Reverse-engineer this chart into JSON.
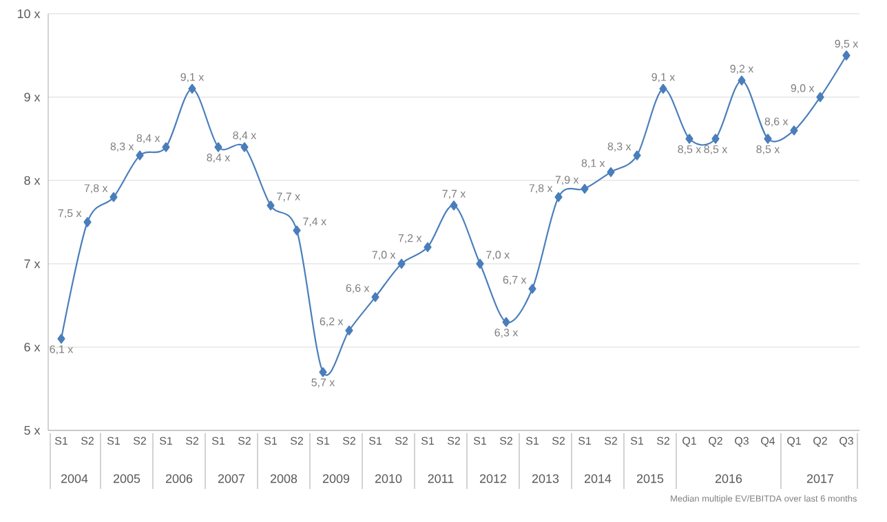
{
  "chart_data": {
    "type": "line",
    "categories": [
      "S1",
      "S2",
      "S1",
      "S2",
      "S1",
      "S2",
      "S1",
      "S2",
      "S1",
      "S2",
      "S1",
      "S2",
      "S1",
      "S2",
      "S1",
      "S2",
      "S1",
      "S2",
      "S1",
      "S2",
      "S1",
      "S2",
      "S1",
      "S2",
      "Q1",
      "Q2",
      "Q3",
      "Q4",
      "Q1",
      "Q2",
      "Q3"
    ],
    "series": [
      {
        "color": "#4a7ebb",
        "values": [
          6.1,
          7.5,
          7.8,
          8.3,
          8.4,
          9.1,
          8.4,
          8.4,
          7.7,
          7.4,
          5.7,
          6.2,
          6.6,
          7.0,
          7.2,
          7.7,
          7.0,
          6.3,
          6.7,
          7.8,
          7.9,
          8.1,
          8.3,
          9.1,
          8.5,
          8.5,
          9.2,
          8.5,
          8.6,
          9.0,
          9.5
        ],
        "value_labels": [
          "6,1 x",
          "7,5 x",
          "7,8 x",
          "8,3 x",
          "8,4 x",
          "9,1 x",
          "8,4 x",
          "8,4 x",
          "7,7 x",
          "7,4 x",
          "5,7 x",
          "6,2 x",
          "6,6 x",
          "7,0 x",
          "7,2 x",
          "7,7 x",
          "7,0 x",
          "6,3 x",
          "6,7 x",
          "7,8 x",
          "7,9 x",
          "8,1 x",
          "8,3 x",
          "9,1 x",
          "8,5 x",
          "8,5 x",
          "9,2 x",
          "8,5 x",
          "8,6 x",
          "9,0 x",
          "9,5 x"
        ]
      }
    ],
    "ylim": [
      5,
      10
    ],
    "yticks": [
      {
        "value": 5,
        "label": "5 x"
      },
      {
        "value": 6,
        "label": "6 x"
      },
      {
        "value": 7,
        "label": "7 x"
      },
      {
        "value": 8,
        "label": "8 x"
      },
      {
        "value": 9,
        "label": "9 x"
      },
      {
        "value": 10,
        "label": "10 x"
      }
    ],
    "grid": "y",
    "marker": "diamond",
    "line_style": "solid",
    "annotations": [
      "2004",
      "2005",
      "2006",
      "2007",
      "2008",
      "2009",
      "2010",
      "2011",
      "2012",
      "2013",
      "2014",
      "2015",
      "2016",
      "2017",
      "Median multiple EV/EBITDA over last 6 months"
    ]
  }
}
